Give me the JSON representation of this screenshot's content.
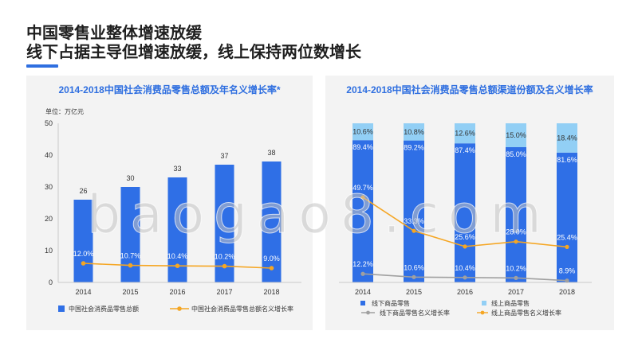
{
  "slide": {
    "title_line1": "中国零售业整体增速放缓",
    "title_line2": "线下占据主导但增速放缓，线上保持两位数增长",
    "accent_color": "#2f6fe0"
  },
  "watermark": "baogao8.com",
  "chart_data": [
    {
      "type": "bar",
      "title": "2014-2018中国社会消费品零售总额及年名义增长率*",
      "unit_label": "单位：万亿元",
      "categories": [
        "2014",
        "2015",
        "2016",
        "2017",
        "2018"
      ],
      "ylim": [
        0,
        50
      ],
      "yticks": [
        0,
        10,
        20,
        30,
        40,
        50
      ],
      "y2lim": [
        0,
        100
      ],
      "grid": false,
      "legend": "bottom",
      "series": [
        {
          "name": "中国社会消费品零售总额",
          "kind": "bar",
          "values": [
            26,
            30,
            33,
            37,
            38
          ],
          "color": "#2f6fe6"
        },
        {
          "name": "中国社会消费品零售总额名义增长率",
          "kind": "line",
          "axis": "secondary",
          "values": [
            12.0,
            10.7,
            10.4,
            10.2,
            9.0
          ],
          "labels": [
            "12.0%",
            "10.7%",
            "10.4%",
            "10.2%",
            "9.0%"
          ],
          "color": "#f5a623"
        }
      ]
    },
    {
      "type": "bar",
      "stacked": true,
      "title": "2014-2018中国社会消费品零售总额渠道份额及名义增长率",
      "categories": [
        "2014",
        "2015",
        "2016",
        "2017",
        "2018"
      ],
      "ylim": [
        0,
        100
      ],
      "y2lim": [
        8,
        86
      ],
      "grid": false,
      "legend": "bottom",
      "series": [
        {
          "name": "线下商品零售",
          "kind": "bar",
          "values": [
            89.4,
            89.2,
            87.4,
            85.0,
            81.6
          ],
          "labels": [
            "89.4%",
            "89.2%",
            "87.4%",
            "85.0%",
            "81.6%"
          ],
          "color": "#2f6fe6"
        },
        {
          "name": "线上商品零售",
          "kind": "bar",
          "values": [
            10.6,
            10.8,
            12.6,
            15.0,
            18.4
          ],
          "labels": [
            "10.6%",
            "10.8%",
            "12.6%",
            "15.0%",
            "18.4%"
          ],
          "color": "#92cff5"
        },
        {
          "name": "线下商品零售名义增长率",
          "kind": "line",
          "axis": "secondary",
          "values": [
            12.2,
            10.6,
            10.4,
            10.2,
            8.9
          ],
          "labels": [
            "12.2%",
            "10.6%",
            "10.4%",
            "10.2%",
            "8.9%"
          ],
          "color": "#a0a0a0"
        },
        {
          "name": "线上商品零售名义增长率",
          "kind": "line",
          "axis": "secondary",
          "values": [
            49.7,
            33.3,
            25.6,
            28.0,
            25.4
          ],
          "labels": [
            "49.7%",
            "33.3%",
            "25.6%",
            "28.0%",
            "25.4%"
          ],
          "color": "#f5a623"
        }
      ]
    }
  ]
}
